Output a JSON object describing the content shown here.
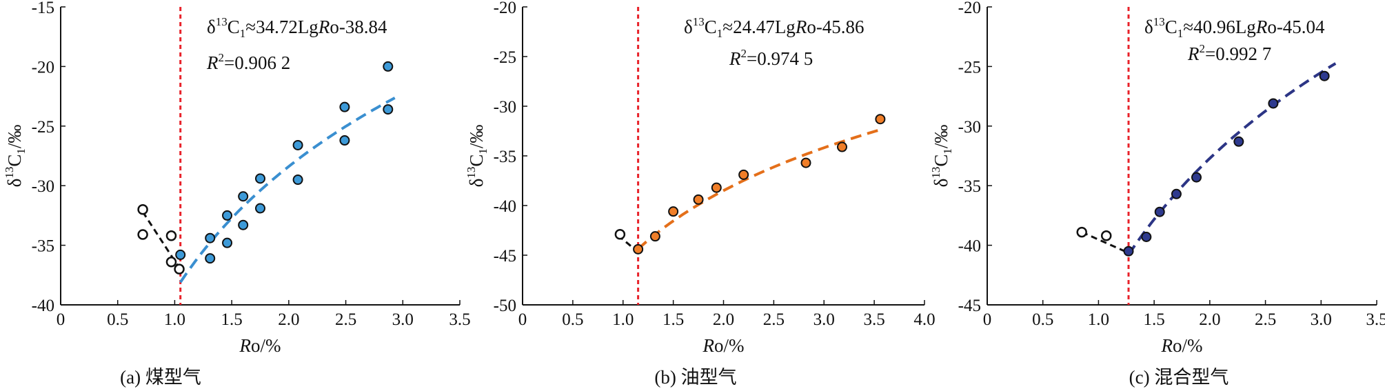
{
  "chart_data": [
    {
      "type": "scatter",
      "caption": "(a) 煤型气",
      "xlabel": "Ro/%",
      "ylabel": "δ13C1/‰",
      "xlim": [
        0,
        3.5
      ],
      "ylim": [
        -40,
        -15
      ],
      "xticks": [
        0,
        0.5,
        1.0,
        1.5,
        2.0,
        2.5,
        3.0,
        3.5
      ],
      "xtick_labels": [
        "0",
        "0.5",
        "1.0",
        "1.5",
        "2.0",
        "2.5",
        "3.0",
        "3.5"
      ],
      "yticks": [
        -40,
        -35,
        -30,
        -25,
        -20,
        -15
      ],
      "ytick_labels": [
        "-40",
        "-35",
        "-30",
        "-25",
        "-20",
        "-15"
      ],
      "equation": "δ13C1≈34.72LgRo-38.84",
      "r2": "R2=0.906 2",
      "threshold_ro": 1.05,
      "fit": {
        "a": 34.72,
        "b": -38.84,
        "from": 1.05,
        "to": 2.93,
        "color": "#3a8fd0"
      },
      "pre_points": [
        [
          0.72,
          -32.0
        ],
        [
          0.72,
          -34.1
        ],
        [
          0.97,
          -34.2
        ],
        [
          0.97,
          -36.4
        ],
        [
          1.04,
          -37.0
        ]
      ],
      "pre_line": [
        [
          0.72,
          -32.2
        ],
        [
          1.04,
          -36.9
        ]
      ],
      "points": [
        [
          1.05,
          -35.8
        ],
        [
          1.31,
          -34.4
        ],
        [
          1.31,
          -36.1
        ],
        [
          1.46,
          -32.5
        ],
        [
          1.46,
          -34.8
        ],
        [
          1.6,
          -30.9
        ],
        [
          1.6,
          -33.3
        ],
        [
          1.75,
          -29.4
        ],
        [
          1.75,
          -31.9
        ],
        [
          2.08,
          -26.6
        ],
        [
          2.08,
          -29.5
        ],
        [
          2.49,
          -23.4
        ],
        [
          2.49,
          -26.2
        ],
        [
          2.87,
          -20.0
        ],
        [
          2.87,
          -23.6
        ]
      ],
      "point_color": "#3d9ad8"
    },
    {
      "type": "scatter",
      "caption": "(b) 油型气",
      "xlabel": "Ro/%",
      "ylabel": "δ13C1/‰",
      "xlim": [
        0,
        4.0
      ],
      "ylim": [
        -50,
        -20
      ],
      "xticks": [
        0,
        0.5,
        1.0,
        1.5,
        2.0,
        2.5,
        3.0,
        3.5,
        4.0
      ],
      "xtick_labels": [
        "0",
        "0.5",
        "1.0",
        "1.5",
        "2.0",
        "2.5",
        "3.0",
        "3.5",
        "4.0"
      ],
      "yticks": [
        -50,
        -45,
        -40,
        -35,
        -30,
        -25,
        -20
      ],
      "ytick_labels": [
        "-50",
        "-45",
        "-40",
        "-35",
        "-30",
        "-25",
        "-20"
      ],
      "equation": "δ13C1≈24.47LgRo-45.86",
      "r2": "R2=0.974 5",
      "threshold_ro": 1.15,
      "fit": {
        "a": 24.47,
        "b": -45.86,
        "from": 1.15,
        "to": 3.56,
        "color": "#e46f1a"
      },
      "pre_points": [
        [
          0.97,
          -42.9
        ]
      ],
      "pre_line": [
        [
          0.95,
          -43.0
        ],
        [
          1.14,
          -44.6
        ]
      ],
      "points": [
        [
          1.15,
          -44.4
        ],
        [
          1.32,
          -43.1
        ],
        [
          1.5,
          -40.6
        ],
        [
          1.75,
          -39.4
        ],
        [
          1.93,
          -38.2
        ],
        [
          2.2,
          -36.9
        ],
        [
          2.82,
          -35.7
        ],
        [
          3.18,
          -34.1
        ],
        [
          3.56,
          -31.3
        ]
      ],
      "point_color": "#f07e28"
    },
    {
      "type": "scatter",
      "caption": "(c) 混合型气",
      "xlabel": "Ro/%",
      "ylabel": "δ13C1/‰",
      "xlim": [
        0,
        3.5
      ],
      "ylim": [
        -45,
        -20
      ],
      "xticks": [
        0,
        0.5,
        1.0,
        1.5,
        2.0,
        2.5,
        3.0,
        3.5
      ],
      "xtick_labels": [
        "0",
        "0.5",
        "1.0",
        "1.5",
        "2.0",
        "2.5",
        "3.0",
        "3.5"
      ],
      "yticks": [
        -45,
        -40,
        -35,
        -30,
        -25,
        -20
      ],
      "ytick_labels": [
        "-45",
        "-40",
        "-35",
        "-30",
        "-25",
        "-20"
      ],
      "equation": "δ13C1≈40.96LgRo-45.04",
      "r2": "R2=0.992 7",
      "threshold_ro": 1.27,
      "fit": {
        "a": 40.96,
        "b": -45.04,
        "from": 1.27,
        "to": 3.13,
        "color": "#2c3585"
      },
      "pre_points": [
        [
          0.85,
          -38.9
        ],
        [
          1.07,
          -39.2
        ]
      ],
      "pre_line": [
        [
          0.85,
          -38.9
        ],
        [
          1.26,
          -40.6
        ]
      ],
      "points": [
        [
          1.27,
          -40.5
        ],
        [
          1.43,
          -39.3
        ],
        [
          1.55,
          -37.2
        ],
        [
          1.7,
          -35.7
        ],
        [
          1.88,
          -34.3
        ],
        [
          2.26,
          -31.3
        ],
        [
          2.57,
          -28.1
        ],
        [
          3.03,
          -25.8
        ]
      ],
      "point_color": "#2e3a8f"
    }
  ],
  "colors": {
    "threshold_line": "#e8222a",
    "axis": "#111111",
    "hollow_marker": "#111111"
  }
}
